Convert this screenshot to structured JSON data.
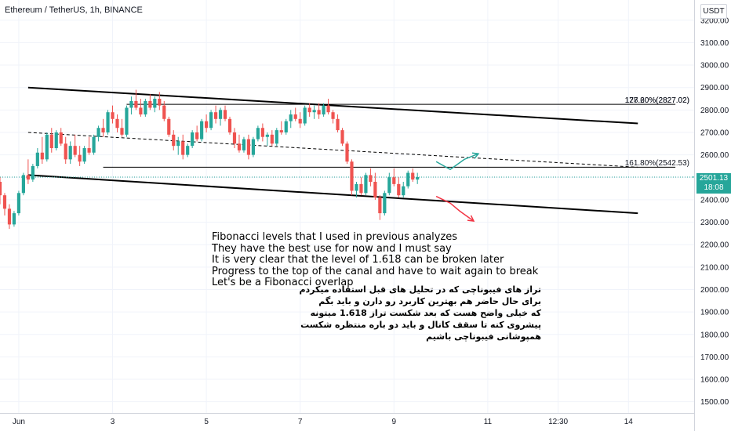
{
  "header": {
    "symbol_line": "Ethereum / TetherUS, 1h, BINANCE"
  },
  "currency_label": "USDT",
  "last_price": {
    "value": "2501.13",
    "countdown": "18:08"
  },
  "colors": {
    "up": "#26a69a",
    "down": "#ef5350",
    "arrow_up": "#26a69a",
    "arrow_down": "#f23645",
    "grid": "#f0f3fa"
  },
  "notes": {
    "english": [
      "Fibonacci levels that I used in previous analyzes",
      "They have the best use for now and I must say",
      "It is very clear that the level of 1.618 can be broken later",
      "Progress to the top of the canal and have to wait again to break",
      "Let's be a Fibonacci overlap"
    ],
    "persian": [
      "تراز های فیبوناچی که در تحلیل های قبل استفاده میکردم",
      "برای حال حاضر هم بهترین کاربرد رو دارن و باید  بگم",
      "که خیلی واضح هست که بعد شکست تراز 1.618 میتونه",
      "پیشروی کنه تا سقف کانال و باید دو باره منتظره شکست",
      "همپوشانی فیبوناچی باشیم"
    ]
  },
  "chart_data": {
    "type": "candlestick",
    "y_axis": {
      "range": [
        1450,
        3290
      ],
      "ticks": [
        3200,
        3100,
        3000,
        2900,
        2800,
        2700,
        2600,
        2500,
        2400,
        2300,
        2200,
        2100,
        2000,
        1900,
        1800,
        1700,
        1600,
        1500
      ],
      "tick_labels": [
        "3200.00",
        "3100.00",
        "3000.00",
        "2900.00",
        "2800.00",
        "2700.00",
        "2600.00",
        "2500.00",
        "2400.00",
        "2300.00",
        "2200.00",
        "2100.00",
        "2000.00",
        "1900.00",
        "1800.00",
        "1700.00",
        "1600.00",
        "1500.00"
      ]
    },
    "x_axis": {
      "unit": "day (June)",
      "range": [
        0.6,
        15.4
      ],
      "ticks": [
        1,
        3,
        5,
        7,
        9,
        11,
        12.5,
        14
      ],
      "tick_labels": [
        "Jun",
        "3",
        "5",
        "7",
        "9",
        "11",
        "12:30",
        "14"
      ]
    },
    "candles": [
      [
        0.6,
        2480,
        2500,
        2380,
        2420
      ],
      [
        0.7,
        2420,
        2430,
        2330,
        2360
      ],
      [
        0.8,
        2360,
        2380,
        2270,
        2290
      ],
      [
        0.9,
        2290,
        2350,
        2280,
        2340
      ],
      [
        1.0,
        2340,
        2440,
        2330,
        2430
      ],
      [
        1.1,
        2430,
        2520,
        2420,
        2510
      ],
      [
        1.2,
        2510,
        2580,
        2470,
        2490
      ],
      [
        1.3,
        2490,
        2560,
        2480,
        2550
      ],
      [
        1.4,
        2550,
        2630,
        2540,
        2610
      ],
      [
        1.5,
        2610,
        2680,
        2560,
        2580
      ],
      [
        1.6,
        2580,
        2700,
        2570,
        2690
      ],
      [
        1.7,
        2690,
        2720,
        2610,
        2630
      ],
      [
        1.8,
        2630,
        2710,
        2620,
        2700
      ],
      [
        1.9,
        2700,
        2720,
        2640,
        2650
      ],
      [
        2.0,
        2650,
        2680,
        2560,
        2580
      ],
      [
        2.1,
        2580,
        2660,
        2560,
        2640
      ],
      [
        2.2,
        2640,
        2690,
        2590,
        2600
      ],
      [
        2.3,
        2600,
        2640,
        2550,
        2570
      ],
      [
        2.4,
        2570,
        2640,
        2560,
        2630
      ],
      [
        2.5,
        2630,
        2680,
        2600,
        2610
      ],
      [
        2.6,
        2610,
        2690,
        2600,
        2680
      ],
      [
        2.7,
        2680,
        2730,
        2660,
        2720
      ],
      [
        2.8,
        2720,
        2760,
        2680,
        2700
      ],
      [
        2.9,
        2700,
        2800,
        2690,
        2790
      ],
      [
        3.0,
        2790,
        2820,
        2740,
        2760
      ],
      [
        3.1,
        2760,
        2780,
        2700,
        2720
      ],
      [
        3.2,
        2720,
        2760,
        2680,
        2690
      ],
      [
        3.3,
        2690,
        2820,
        2680,
        2810
      ],
      [
        3.4,
        2810,
        2860,
        2780,
        2840
      ],
      [
        3.5,
        2840,
        2890,
        2800,
        2810
      ],
      [
        3.6,
        2810,
        2850,
        2770,
        2780
      ],
      [
        3.7,
        2780,
        2850,
        2770,
        2840
      ],
      [
        3.8,
        2840,
        2870,
        2800,
        2810
      ],
      [
        3.9,
        2810,
        2860,
        2790,
        2850
      ],
      [
        4.0,
        2850,
        2880,
        2800,
        2820
      ],
      [
        4.1,
        2820,
        2840,
        2750,
        2760
      ],
      [
        4.2,
        2760,
        2770,
        2680,
        2690
      ],
      [
        4.3,
        2690,
        2710,
        2620,
        2640
      ],
      [
        4.4,
        2640,
        2680,
        2600,
        2660
      ],
      [
        4.5,
        2660,
        2690,
        2580,
        2600
      ],
      [
        4.6,
        2600,
        2650,
        2590,
        2640
      ],
      [
        4.7,
        2640,
        2710,
        2630,
        2700
      ],
      [
        4.8,
        2700,
        2730,
        2660,
        2670
      ],
      [
        4.9,
        2670,
        2760,
        2660,
        2750
      ],
      [
        5.0,
        2750,
        2780,
        2700,
        2720
      ],
      [
        5.1,
        2720,
        2800,
        2710,
        2790
      ],
      [
        5.2,
        2790,
        2820,
        2740,
        2760
      ],
      [
        5.3,
        2760,
        2810,
        2730,
        2800
      ],
      [
        5.4,
        2800,
        2820,
        2750,
        2760
      ],
      [
        5.5,
        2760,
        2770,
        2690,
        2700
      ],
      [
        5.6,
        2700,
        2720,
        2630,
        2650
      ],
      [
        5.7,
        2650,
        2690,
        2610,
        2620
      ],
      [
        5.8,
        2620,
        2680,
        2610,
        2670
      ],
      [
        5.9,
        2670,
        2690,
        2580,
        2600
      ],
      [
        6.0,
        2600,
        2680,
        2590,
        2670
      ],
      [
        6.1,
        2670,
        2730,
        2660,
        2720
      ],
      [
        6.2,
        2720,
        2740,
        2660,
        2680
      ],
      [
        6.3,
        2680,
        2700,
        2640,
        2690
      ],
      [
        6.4,
        2690,
        2710,
        2640,
        2650
      ],
      [
        6.5,
        2650,
        2720,
        2640,
        2710
      ],
      [
        6.6,
        2710,
        2750,
        2690,
        2700
      ],
      [
        6.7,
        2700,
        2760,
        2690,
        2750
      ],
      [
        6.8,
        2750,
        2800,
        2720,
        2780
      ],
      [
        6.9,
        2780,
        2810,
        2750,
        2760
      ],
      [
        7.0,
        2760,
        2790,
        2720,
        2740
      ],
      [
        7.1,
        2740,
        2820,
        2730,
        2810
      ],
      [
        7.2,
        2810,
        2830,
        2770,
        2790
      ],
      [
        7.3,
        2790,
        2820,
        2760,
        2800
      ],
      [
        7.4,
        2800,
        2830,
        2760,
        2780
      ],
      [
        7.5,
        2780,
        2830,
        2770,
        2820
      ],
      [
        7.6,
        2820,
        2850,
        2780,
        2790
      ],
      [
        7.7,
        2790,
        2800,
        2740,
        2760
      ],
      [
        7.8,
        2760,
        2780,
        2700,
        2710
      ],
      [
        7.9,
        2710,
        2720,
        2640,
        2650
      ],
      [
        8.0,
        2650,
        2660,
        2560,
        2570
      ],
      [
        8.1,
        2570,
        2580,
        2420,
        2440
      ],
      [
        8.2,
        2440,
        2480,
        2410,
        2470
      ],
      [
        8.3,
        2470,
        2500,
        2420,
        2430
      ],
      [
        8.4,
        2430,
        2520,
        2420,
        2510
      ],
      [
        8.5,
        2510,
        2540,
        2460,
        2480
      ],
      [
        8.6,
        2480,
        2520,
        2400,
        2410
      ],
      [
        8.7,
        2410,
        2420,
        2310,
        2340
      ],
      [
        8.8,
        2340,
        2440,
        2330,
        2430
      ],
      [
        8.9,
        2430,
        2520,
        2420,
        2500
      ],
      [
        9.0,
        2500,
        2540,
        2460,
        2470
      ],
      [
        9.1,
        2470,
        2500,
        2410,
        2420
      ],
      [
        9.2,
        2420,
        2480,
        2410,
        2460
      ],
      [
        9.3,
        2460,
        2530,
        2450,
        2520
      ],
      [
        9.4,
        2520,
        2540,
        2480,
        2490
      ],
      [
        9.5,
        2490,
        2520,
        2470,
        2501
      ]
    ],
    "lines": [
      {
        "kind": "channel-top",
        "points": [
          [
            1.2,
            2900
          ],
          [
            14.2,
            2740
          ]
        ]
      },
      {
        "kind": "channel-bottom",
        "points": [
          [
            1.2,
            2510
          ],
          [
            14.2,
            2340
          ]
        ]
      },
      {
        "kind": "channel-mid-dashed",
        "points": [
          [
            1.2,
            2700
          ],
          [
            14.2,
            2545
          ]
        ]
      },
      {
        "kind": "horizontal",
        "points": [
          [
            3.3,
            2825
          ],
          [
            15.0,
            2825
          ]
        ]
      },
      {
        "kind": "horizontal",
        "points": [
          [
            2.8,
            2545
          ],
          [
            15.0,
            2545
          ]
        ]
      }
    ],
    "fib_labels": [
      {
        "text": "178.60%(2827.02)",
        "level": 2832
      },
      {
        "text": "127.20%(2827.02)",
        "level": 2832
      },
      {
        "text": "161.80%(2542.53)",
        "level": 2553
      }
    ],
    "arrows": [
      {
        "direction": "up",
        "points": [
          [
            9.9,
            2570
          ],
          [
            10.2,
            2535
          ],
          [
            10.5,
            2580
          ],
          [
            10.8,
            2605
          ]
        ]
      },
      {
        "direction": "down",
        "points": [
          [
            9.9,
            2415
          ],
          [
            10.2,
            2385
          ],
          [
            10.4,
            2350
          ],
          [
            10.7,
            2305
          ]
        ]
      }
    ],
    "last_price_level": 2501.13,
    "grid": true
  }
}
